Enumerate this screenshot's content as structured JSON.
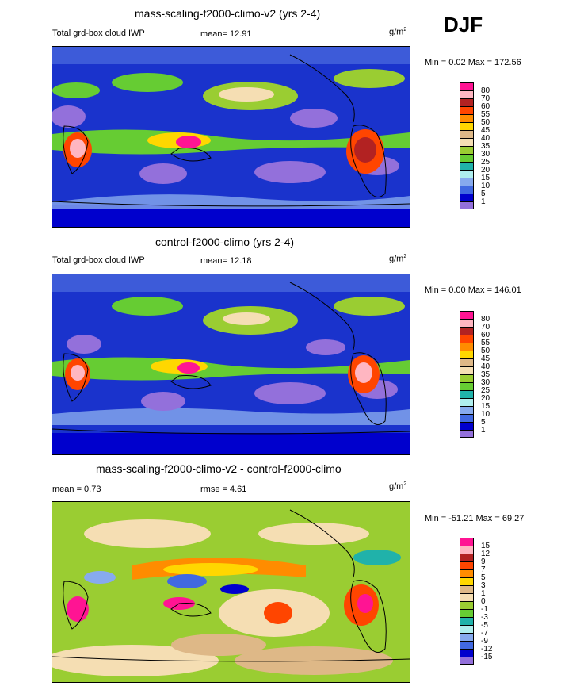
{
  "season": "DJF",
  "panels": [
    {
      "title": "mass-scaling-f2000-climo-v2 (yrs 2-4)",
      "left_label": "Total grd-box cloud IWP",
      "center_label": "mean=  12.91",
      "unit": "g/m",
      "unit_exp": "2",
      "minmax": "Min =   0.02 Max = 172.56",
      "levels": [
        "80",
        "70",
        "60",
        "55",
        "50",
        "45",
        "40",
        "35",
        "30",
        "25",
        "20",
        "15",
        "10",
        "5",
        "1"
      ],
      "colors": [
        "#ff1493",
        "#ffb6c1",
        "#b22222",
        "#ff4500",
        "#ff8c00",
        "#ffd700",
        "#deb887",
        "#f5deb3",
        "#9acd32",
        "#66cc33",
        "#20b2aa",
        "#afeeee",
        "#87aaee",
        "#4169e1",
        "#0000cd",
        "#9370db"
      ]
    },
    {
      "title": "control-f2000-climo (yrs 2-4)",
      "left_label": "Total grd-box cloud IWP",
      "center_label": "mean=  12.18",
      "unit": "g/m",
      "unit_exp": "2",
      "minmax": "Min =   0.00 Max = 146.01",
      "levels": [
        "80",
        "70",
        "60",
        "55",
        "50",
        "45",
        "40",
        "35",
        "30",
        "25",
        "20",
        "15",
        "10",
        "5",
        "1"
      ],
      "colors": [
        "#ff1493",
        "#ffb6c1",
        "#b22222",
        "#ff4500",
        "#ff8c00",
        "#ffd700",
        "#deb887",
        "#f5deb3",
        "#9acd32",
        "#66cc33",
        "#20b2aa",
        "#afeeee",
        "#87aaee",
        "#4169e1",
        "#0000cd",
        "#9370db"
      ]
    },
    {
      "title": "mass-scaling-f2000-climo-v2 - control-f2000-climo",
      "left_label": "mean =   0.73",
      "center_label": "rmse =   4.61",
      "unit": "g/m",
      "unit_exp": "2",
      "minmax": "Min = -51.21 Max =  69.27",
      "levels": [
        "15",
        "12",
        "9",
        "7",
        "5",
        "3",
        "1",
        "0",
        "-1",
        "-3",
        "-5",
        "-7",
        "-9",
        "-12",
        "-15"
      ],
      "colors": [
        "#ff1493",
        "#ffb6c1",
        "#b22222",
        "#ff4500",
        "#ff8c00",
        "#ffd700",
        "#deb887",
        "#f5deb3",
        "#9acd32",
        "#66cc33",
        "#20b2aa",
        "#afeeee",
        "#87aaee",
        "#4169e1",
        "#0000cd",
        "#9370db"
      ]
    }
  ]
}
